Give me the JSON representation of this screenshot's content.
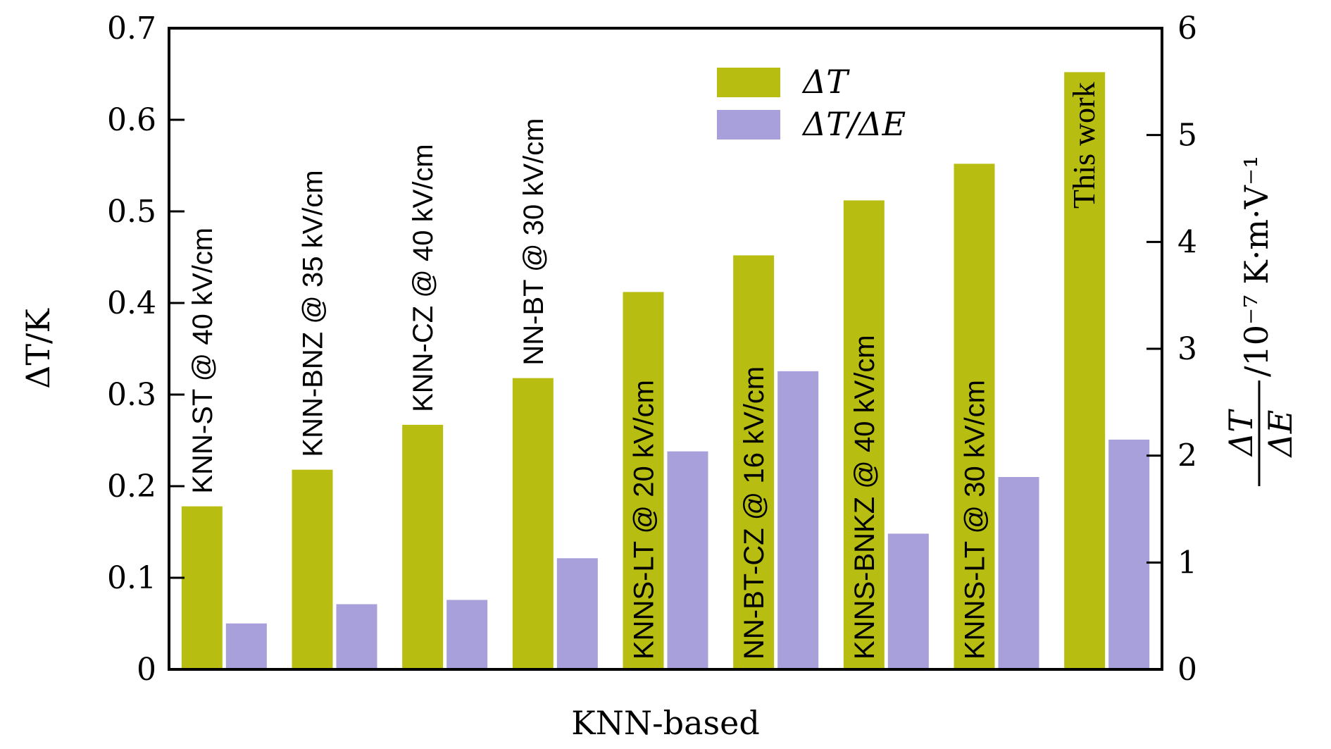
{
  "chart_data": {
    "type": "bar",
    "xlabel": "KNN-based",
    "ylabel": "ΔT/K",
    "y2label_fraction_num": "ΔT",
    "y2label_fraction_den": "ΔE",
    "y2label_units": "/10⁻⁷ K·m·V⁻¹",
    "ylim": [
      0,
      0.7
    ],
    "y2lim": [
      0,
      6
    ],
    "yticks": [
      "0",
      "0.1",
      "0.2",
      "0.3",
      "0.4",
      "0.5",
      "0.6",
      "0.7"
    ],
    "y2ticks": [
      "0",
      "1",
      "2",
      "3",
      "4",
      "5",
      "6"
    ],
    "categories": [
      "KNN-ST @ 40 kV/cm",
      "KNN-BNZ @ 35 kV/cm",
      "KNN-CZ @ 40 kV/cm",
      "NN-BT @ 30 kV/cm",
      "KNNS-LT @ 20 kV/cm",
      "NN-BT-CZ @ 16 kV/cm",
      "KNNS-BNKZ @ 40 kV/cm",
      "KNNS-LT @ 30 kV/cm",
      "This work"
    ],
    "series": [
      {
        "name": "ΔT",
        "axis": "left",
        "color": "#b8bd12",
        "values": [
          0.178,
          0.218,
          0.267,
          0.318,
          0.412,
          0.452,
          0.512,
          0.552,
          0.652
        ]
      },
      {
        "name": "ΔT/ΔE",
        "axis": "right",
        "color": "#a8a0da",
        "values": [
          0.43,
          0.61,
          0.65,
          1.04,
          2.04,
          2.79,
          1.27,
          1.8,
          2.15
        ]
      }
    ],
    "highlight_color": "#e8141c",
    "legend_position": "top-right"
  }
}
